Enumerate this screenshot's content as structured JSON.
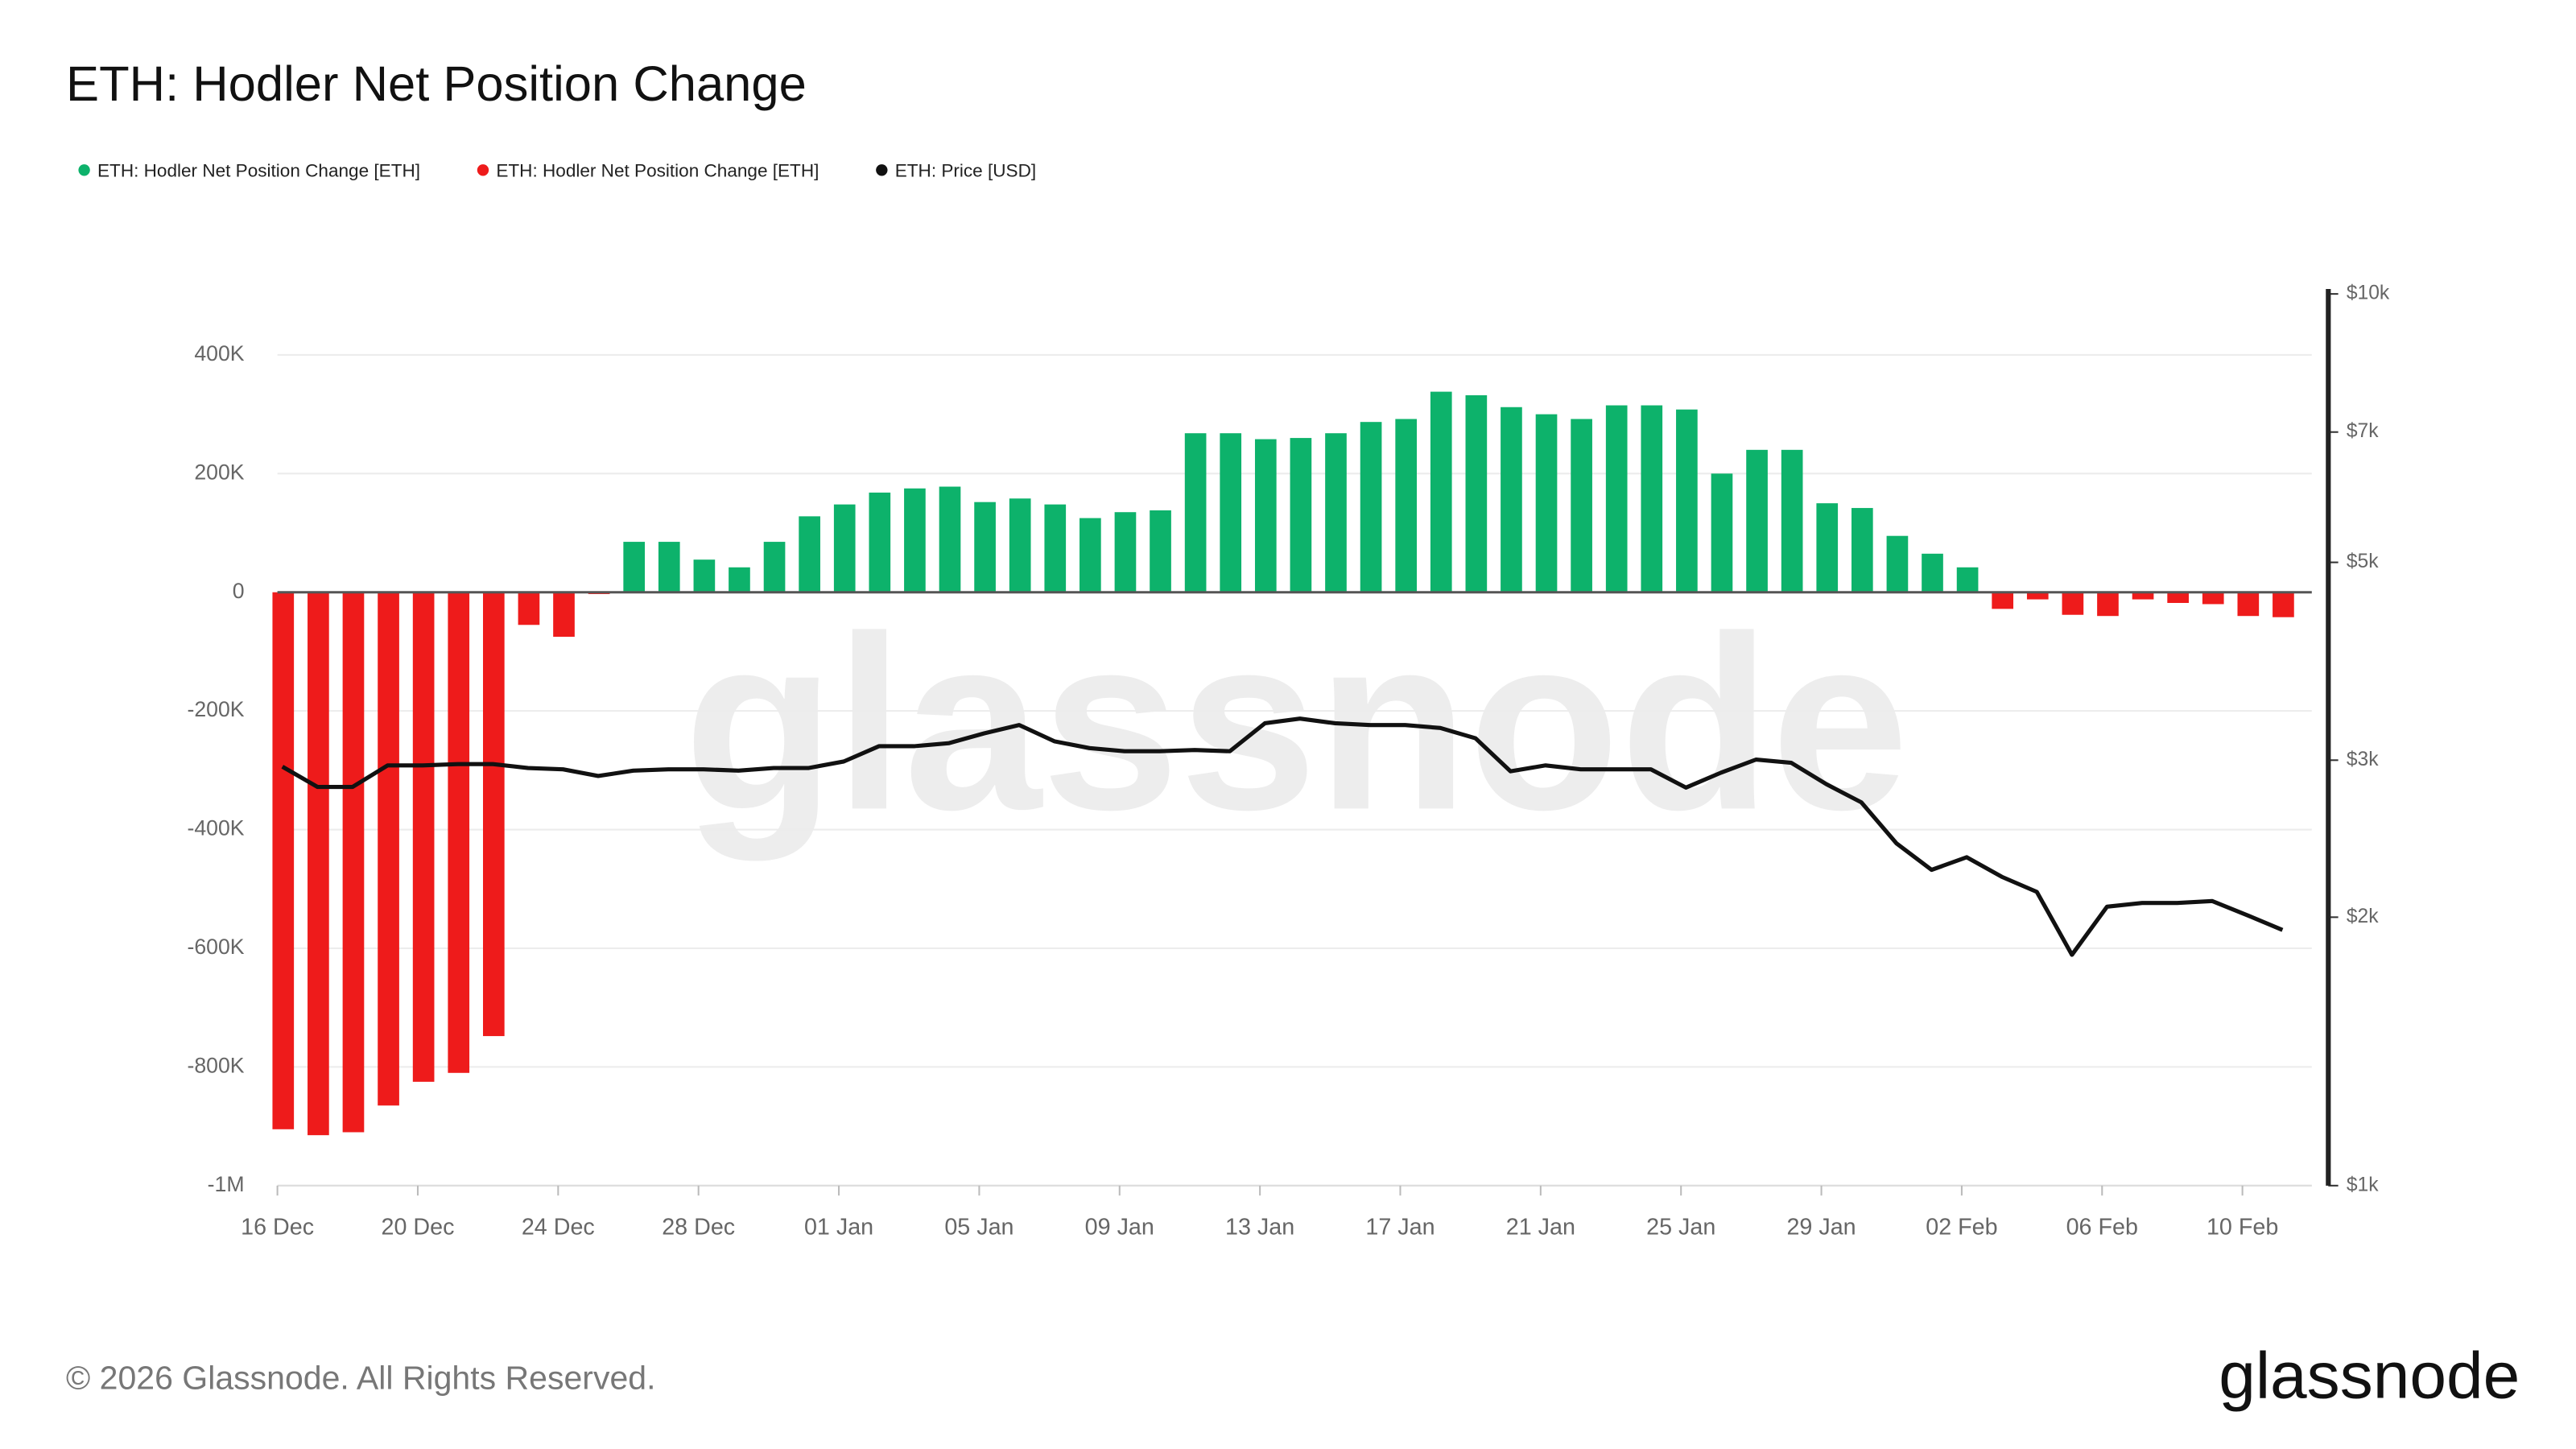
{
  "chart_data": {
    "type": "bar",
    "title": "ETH: Hodler Net Position Change",
    "categories": [
      "16 Dec",
      null,
      null,
      null,
      "20 Dec",
      null,
      null,
      null,
      "24 Dec",
      null,
      null,
      null,
      "28 Dec",
      null,
      null,
      null,
      "01 Jan",
      null,
      null,
      null,
      "05 Jan",
      null,
      null,
      null,
      "09 Jan",
      null,
      null,
      null,
      "13 Jan",
      null,
      null,
      null,
      "17 Jan",
      null,
      null,
      null,
      "21 Jan",
      null,
      null,
      null,
      "25 Jan",
      null,
      null,
      null,
      "29 Jan",
      null,
      null,
      null,
      "02 Feb",
      null,
      null,
      null,
      "06 Feb",
      null,
      null,
      null,
      "10 Feb",
      null
    ],
    "series": [
      {
        "name": "ETH: Hodler Net Position Change [ETH]",
        "type": "bar",
        "color": "#0db26b",
        "values": [
          null,
          null,
          null,
          null,
          null,
          null,
          null,
          null,
          null,
          null,
          85000,
          85000,
          55000,
          42000,
          85000,
          128000,
          148000,
          168000,
          175000,
          178000,
          152000,
          158000,
          148000,
          125000,
          135000,
          138000,
          268000,
          268000,
          258000,
          260000,
          268000,
          287000,
          292000,
          338000,
          332000,
          312000,
          300000,
          292000,
          315000,
          315000,
          308000,
          200000,
          240000,
          240000,
          150000,
          142000,
          95000,
          65000,
          42000,
          null,
          null,
          null,
          null,
          null,
          null,
          null,
          null,
          null
        ]
      },
      {
        "name": "ETH: Hodler Net Position Change [ETH]",
        "type": "bar",
        "color": "#ee1b1b",
        "values": [
          -905000,
          -915000,
          -910000,
          -865000,
          -825000,
          -810000,
          -748000,
          -55000,
          -75000,
          -3000,
          null,
          null,
          null,
          null,
          null,
          null,
          null,
          null,
          null,
          null,
          null,
          null,
          null,
          null,
          null,
          null,
          null,
          null,
          null,
          null,
          null,
          null,
          null,
          null,
          null,
          null,
          null,
          null,
          null,
          null,
          null,
          null,
          null,
          null,
          null,
          null,
          null,
          null,
          null,
          -28000,
          -12000,
          -38000,
          -40000,
          -12000,
          -18000,
          -20000,
          -40000,
          -42000
        ]
      },
      {
        "name": "ETH: Price [USD]",
        "type": "line",
        "axis": "y2",
        "color": "#111111",
        "values": [
          2950,
          2800,
          2800,
          2960,
          2960,
          2970,
          2970,
          2940,
          2930,
          2880,
          2920,
          2930,
          2930,
          2920,
          2940,
          2940,
          2990,
          3110,
          3110,
          3135,
          3215,
          3285,
          3150,
          3095,
          3070,
          3070,
          3080,
          3070,
          3300,
          3340,
          3300,
          3285,
          3285,
          3260,
          3175,
          2915,
          2960,
          2930,
          2930,
          2930,
          2795,
          2905,
          3005,
          2980,
          2820,
          2690,
          2420,
          2260,
          2335,
          2220,
          2135,
          1815,
          2055,
          2075,
          2075,
          2085,
          2010,
          1935
        ]
      }
    ],
    "ylim": [
      -1000000,
      500000
    ],
    "yticks": [
      {
        "value": -1000000,
        "label": "-1M"
      },
      {
        "value": -800000,
        "label": "-800K"
      },
      {
        "value": -600000,
        "label": "-600K"
      },
      {
        "value": -400000,
        "label": "-400K"
      },
      {
        "value": -200000,
        "label": "-200K"
      },
      0,
      {
        "value": 200000,
        "label": "200K"
      },
      {
        "value": 400000,
        "label": "400K"
      }
    ],
    "y2lim": [
      1000,
      10000
    ],
    "y2log": true,
    "y2ticks": [
      {
        "value": 1000,
        "label": "$1k"
      },
      {
        "value": 2000,
        "label": "$2k"
      },
      {
        "value": 3000,
        "label": "$3k"
      },
      {
        "value": 5000,
        "label": "$5k"
      },
      {
        "value": 7000,
        "label": "$7k"
      },
      {
        "value": 10000,
        "label": "$10k"
      }
    ],
    "grid": true,
    "watermark": "glassnode",
    "footer": "© 2026 Glassnode. All Rights Reserved.",
    "logo": "glassnode"
  }
}
